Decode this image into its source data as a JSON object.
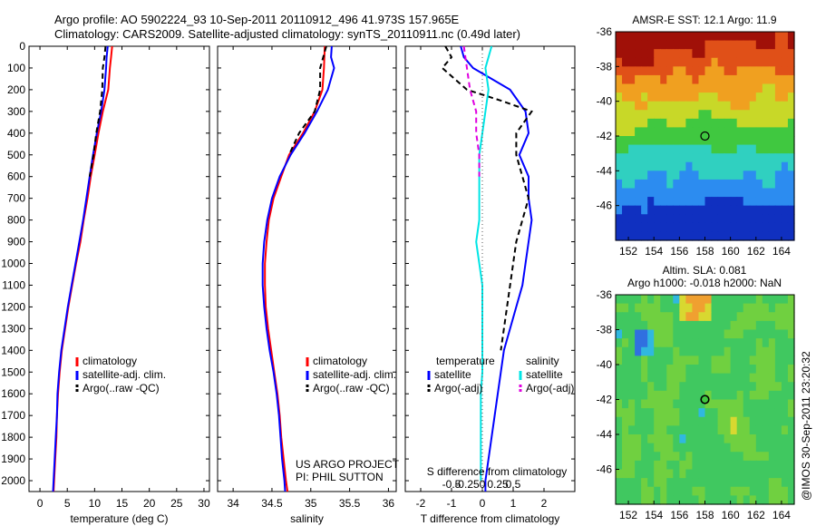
{
  "figure": {
    "title_line1": "Argo profile: AO 5902224_93 10-Sep-2011 20110912_496 41.973S 157.965E",
    "title_line2": "Climatology: CARS2009. Satellite-adjusted climatology: synTS_20110911.nc (0.49d later)",
    "credit": "@IMOS 30-Sep-2011 23:20:32",
    "project_line1": "US ARGO PROJECT",
    "project_line2": "PI: PHIL SUTTON",
    "colors": {
      "climatology": "#ff0000",
      "satellite": "#0000ff",
      "argo": "#000000",
      "sat_salinity": "#00e5e5",
      "argo_salinity": "#e000e0"
    }
  },
  "chart_data": [
    {
      "type": "line",
      "id": "temperature",
      "xlabel": "temperature (deg C)",
      "xlim": [
        -2,
        31
      ],
      "xticks": [
        0,
        5,
        10,
        15,
        20,
        25,
        30
      ],
      "ylim": [
        0,
        2050
      ],
      "y_reversed": true,
      "yticks": [
        0,
        100,
        200,
        300,
        400,
        500,
        600,
        700,
        800,
        900,
        1000,
        1100,
        1200,
        1300,
        1400,
        1500,
        1600,
        1700,
        1800,
        1900,
        2000
      ],
      "legend": [
        "climatology",
        "satellite-adj. clim.",
        "Argo(..raw -QC)"
      ],
      "series": [
        {
          "name": "climatology",
          "color": "#ff0000",
          "dash": "",
          "points": [
            [
              13.2,
              0
            ],
            [
              13.0,
              50
            ],
            [
              12.8,
              100
            ],
            [
              12.5,
              200
            ],
            [
              11.5,
              300
            ],
            [
              10.7,
              400
            ],
            [
              10.0,
              500
            ],
            [
              9.3,
              600
            ],
            [
              8.7,
              700
            ],
            [
              8.0,
              800
            ],
            [
              7.4,
              900
            ],
            [
              6.6,
              1000
            ],
            [
              5.9,
              1100
            ],
            [
              5.2,
              1200
            ],
            [
              4.6,
              1300
            ],
            [
              4.0,
              1400
            ],
            [
              3.6,
              1500
            ],
            [
              3.3,
              1600
            ],
            [
              3.1,
              1700
            ],
            [
              3.0,
              1800
            ],
            [
              2.8,
              1900
            ],
            [
              2.6,
              2000
            ],
            [
              2.5,
              2050
            ]
          ]
        },
        {
          "name": "satellite-adj. clim.",
          "color": "#0000ff",
          "dash": "",
          "points": [
            [
              12.4,
              0
            ],
            [
              12.2,
              50
            ],
            [
              12.1,
              100
            ],
            [
              11.8,
              200
            ],
            [
              11.2,
              300
            ],
            [
              10.4,
              400
            ],
            [
              9.7,
              500
            ],
            [
              9.1,
              600
            ],
            [
              8.5,
              700
            ],
            [
              7.9,
              800
            ],
            [
              7.2,
              900
            ],
            [
              6.5,
              1000
            ],
            [
              5.8,
              1100
            ],
            [
              5.1,
              1200
            ],
            [
              4.5,
              1300
            ],
            [
              3.9,
              1400
            ],
            [
              3.5,
              1500
            ],
            [
              3.2,
              1600
            ],
            [
              3.1,
              1700
            ],
            [
              2.9,
              1800
            ],
            [
              2.7,
              1900
            ],
            [
              2.5,
              2000
            ],
            [
              2.4,
              2050
            ]
          ]
        },
        {
          "name": "Argo(..raw -QC)",
          "color": "#000000",
          "dash": "6,4",
          "points": [
            [
              12.0,
              0
            ],
            [
              11.8,
              50
            ],
            [
              11.5,
              100
            ],
            [
              11.4,
              200
            ],
            [
              11.0,
              300
            ],
            [
              10.3,
              400
            ],
            [
              9.8,
              500
            ],
            [
              9.1,
              600
            ]
          ]
        }
      ]
    },
    {
      "type": "line",
      "id": "salinity",
      "xlabel": "salinity",
      "xlim": [
        33.8,
        36.1
      ],
      "xticks": [
        34,
        34.5,
        35,
        35.5,
        36
      ],
      "ylim": [
        0,
        2050
      ],
      "y_reversed": true,
      "legend": [
        "climatology",
        "satellite-adj. clim.",
        "Argo(..raw -QC)"
      ],
      "series": [
        {
          "name": "climatology",
          "color": "#ff0000",
          "dash": "",
          "points": [
            [
              35.18,
              0
            ],
            [
              35.17,
              100
            ],
            [
              35.15,
              200
            ],
            [
              35.05,
              300
            ],
            [
              34.9,
              400
            ],
            [
              34.72,
              500
            ],
            [
              34.62,
              600
            ],
            [
              34.52,
              700
            ],
            [
              34.46,
              800
            ],
            [
              34.43,
              900
            ],
            [
              34.41,
              1000
            ],
            [
              34.41,
              1100
            ],
            [
              34.42,
              1200
            ],
            [
              34.45,
              1300
            ],
            [
              34.49,
              1400
            ],
            [
              34.53,
              1500
            ],
            [
              34.57,
              1600
            ],
            [
              34.6,
              1700
            ],
            [
              34.62,
              1800
            ],
            [
              34.65,
              1900
            ],
            [
              34.68,
              2000
            ],
            [
              34.7,
              2050
            ]
          ]
        },
        {
          "name": "satellite-adj. clim.",
          "color": "#0000ff",
          "dash": "",
          "points": [
            [
              35.27,
              0
            ],
            [
              35.26,
              50
            ],
            [
              35.3,
              100
            ],
            [
              35.22,
              200
            ],
            [
              35.08,
              300
            ],
            [
              34.92,
              400
            ],
            [
              34.74,
              500
            ],
            [
              34.6,
              600
            ],
            [
              34.5,
              700
            ],
            [
              34.44,
              800
            ],
            [
              34.4,
              900
            ],
            [
              34.38,
              1000
            ],
            [
              34.38,
              1100
            ],
            [
              34.4,
              1200
            ],
            [
              34.43,
              1300
            ],
            [
              34.47,
              1400
            ],
            [
              34.52,
              1500
            ],
            [
              34.56,
              1600
            ],
            [
              34.59,
              1700
            ],
            [
              34.61,
              1800
            ],
            [
              34.63,
              1900
            ],
            [
              34.66,
              2000
            ],
            [
              34.67,
              2050
            ]
          ]
        },
        {
          "name": "Argo(..raw -QC)",
          "color": "#000000",
          "dash": "6,4",
          "points": [
            [
              35.2,
              0
            ],
            [
              35.12,
              100
            ],
            [
              35.12,
              200
            ],
            [
              35.05,
              300
            ],
            [
              34.85,
              400
            ],
            [
              34.72,
              500
            ]
          ]
        }
      ]
    },
    {
      "type": "line",
      "id": "difference",
      "xlabel": "T difference from climatology",
      "xlabel_top": "S difference from climatology",
      "xlim": [
        -2.5,
        3.0
      ],
      "xticks": [
        -2,
        -1,
        0,
        1,
        2
      ],
      "xticks_top": [
        "-0.5",
        "-0.25",
        "0",
        "0.25",
        "0.5"
      ],
      "ylim": [
        0,
        2050
      ],
      "y_reversed": true,
      "legend_titles": [
        "temperature",
        "salinity"
      ],
      "legend": [
        "satellite",
        "Argo(-adj)",
        "satellite",
        "Argo(-adj)"
      ],
      "series": [
        {
          "name": "satellite",
          "color": "#0000ff",
          "dash": "",
          "points": [
            [
              -0.7,
              0
            ],
            [
              -0.6,
              50
            ],
            [
              -0.3,
              100
            ],
            [
              0.9,
              200
            ],
            [
              1.4,
              300
            ],
            [
              1.5,
              400
            ],
            [
              1.2,
              500
            ],
            [
              1.5,
              600
            ],
            [
              1.5,
              700
            ],
            [
              1.6,
              800
            ],
            [
              1.5,
              900
            ],
            [
              1.4,
              1000
            ],
            [
              1.3,
              1100
            ],
            [
              1.1,
              1200
            ],
            [
              0.9,
              1300
            ],
            [
              0.7,
              1400
            ],
            [
              0.6,
              1500
            ],
            [
              0.5,
              1600
            ],
            [
              0.4,
              1700
            ],
            [
              0.3,
              1800
            ],
            [
              0.2,
              1900
            ],
            [
              0.1,
              2000
            ],
            [
              0.1,
              2050
            ]
          ]
        },
        {
          "name": "Argo(-adj)",
          "color": "#000000",
          "dash": "6,4",
          "points": [
            [
              -1.2,
              0
            ],
            [
              -1.0,
              50
            ],
            [
              -1.3,
              100
            ],
            [
              -0.5,
              200
            ],
            [
              0.6,
              250
            ],
            [
              1.6,
              300
            ],
            [
              1.1,
              400
            ],
            [
              1.1,
              500
            ],
            [
              1.3,
              600
            ],
            [
              1.5,
              700
            ],
            [
              1.3,
              800
            ],
            [
              1.1,
              900
            ],
            [
              1.0,
              1000
            ],
            [
              0.9,
              1100
            ],
            [
              0.7,
              1300
            ],
            [
              0.6,
              1400
            ]
          ]
        },
        {
          "name": "satellite",
          "color": "#00e5e5",
          "dash": "",
          "points": [
            [
              0.3,
              0
            ],
            [
              0.1,
              100
            ],
            [
              0.2,
              200
            ],
            [
              0.1,
              300
            ],
            [
              0.0,
              400
            ],
            [
              -0.1,
              500
            ],
            [
              -0.1,
              600
            ],
            [
              -0.1,
              700
            ],
            [
              -0.1,
              800
            ],
            [
              -0.2,
              900
            ],
            [
              -0.1,
              1000
            ],
            [
              0.0,
              1100
            ],
            [
              0.0,
              1200
            ],
            [
              0.0,
              1300
            ],
            [
              0.0,
              1400
            ],
            [
              0.0,
              1500
            ],
            [
              -0.05,
              1600
            ],
            [
              -0.05,
              1700
            ],
            [
              -0.05,
              1800
            ],
            [
              -0.05,
              1900
            ],
            [
              -0.05,
              2000
            ]
          ]
        },
        {
          "name": "Argo(-adj)",
          "color": "#e000e0",
          "dash": "6,4",
          "points": [
            [
              -0.6,
              0
            ],
            [
              -0.5,
              100
            ],
            [
              -0.4,
              200
            ],
            [
              -0.2,
              300
            ],
            [
              -0.2,
              400
            ],
            [
              -0.1,
              500
            ],
            [
              -0.1,
              600
            ]
          ]
        }
      ]
    },
    {
      "type": "heatmap",
      "id": "sst_map",
      "title": "AMSR-E SST: 12.1  Argo: 11.9",
      "xlim": [
        151,
        165
      ],
      "ylim": [
        -48,
        -36
      ],
      "xticks": [
        152,
        154,
        156,
        158,
        160,
        162,
        164
      ],
      "yticks": [
        -36,
        -38,
        -40,
        -42,
        -44,
        -46
      ],
      "marker": [
        158,
        -42
      ],
      "colors": [
        "#1030c0",
        "#2c8cf0",
        "#30d0c0",
        "#40c840",
        "#c8d828",
        "#f0a020",
        "#e05018",
        "#a01008"
      ]
    },
    {
      "type": "heatmap",
      "id": "sla_map",
      "title": "Altim. SLA: 0.081",
      "subtitle": "Argo h1000: -0.018 h2000: NaN",
      "xlim": [
        151,
        165
      ],
      "ylim": [
        -48,
        -36
      ],
      "xticks": [
        152,
        154,
        156,
        158,
        160,
        162,
        164
      ],
      "yticks": [
        -36,
        -38,
        -40,
        -42,
        -44,
        -46
      ],
      "marker": [
        158,
        -42
      ],
      "colors": [
        "#3070e0",
        "#30b8e0",
        "#40c860",
        "#70d040",
        "#d8d830",
        "#f0a030"
      ]
    }
  ]
}
